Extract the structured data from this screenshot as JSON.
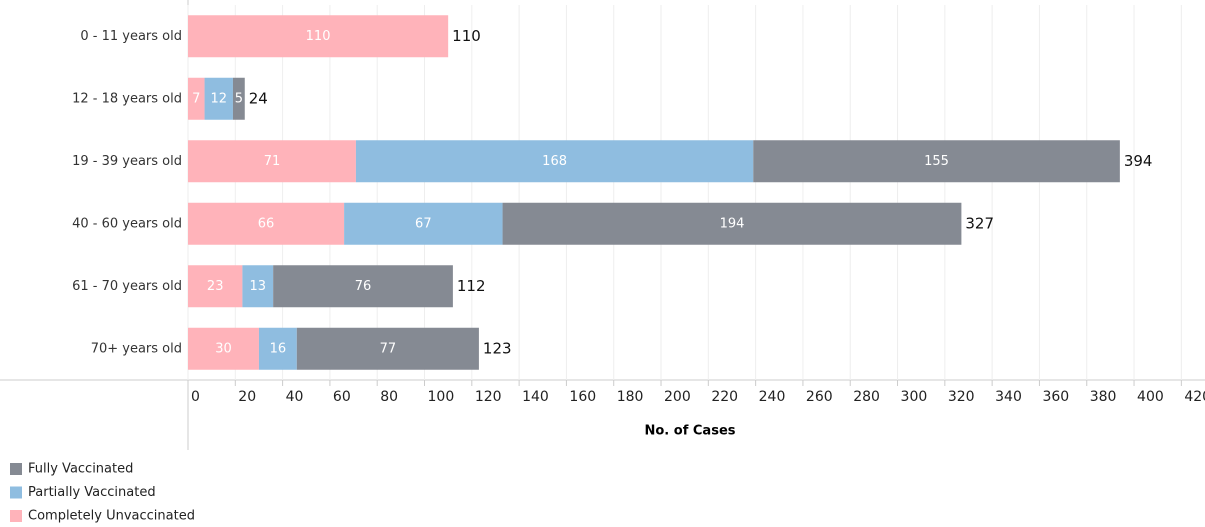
{
  "chart_data": {
    "type": "stacked-bar-horizontal",
    "categories": [
      "0 - 11 years old",
      "12 - 18 years old",
      "19 - 39 years old",
      "40 - 60 years old",
      "61 - 70 years old",
      "70+ years old"
    ],
    "series": [
      {
        "name": "Fully Vaccinated",
        "color": "#858a93",
        "values": [
          null,
          5,
          155,
          194,
          76,
          77
        ]
      },
      {
        "name": "Partially Vaccinated",
        "color": "#8fbde0",
        "values": [
          null,
          12,
          168,
          67,
          13,
          16
        ]
      },
      {
        "name": "Completely Unvaccinated",
        "color": "#ffb3ba",
        "values": [
          110,
          7,
          71,
          66,
          23,
          30
        ]
      }
    ],
    "totals": [
      110,
      24,
      394,
      327,
      112,
      123
    ],
    "x_label": "No. of Cases",
    "xlim": [
      0,
      430
    ],
    "xticks": [
      0,
      20,
      40,
      60,
      80,
      100,
      120,
      140,
      160,
      180,
      200,
      220,
      240,
      260,
      280,
      300,
      320,
      340,
      360,
      380,
      400,
      420
    ],
    "grid": true
  }
}
